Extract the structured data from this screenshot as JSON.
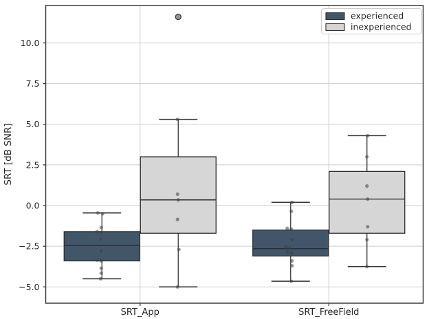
{
  "figure": {
    "ylabel": "SRT [dB SNR]"
  },
  "chart_data": {
    "type": "boxplot",
    "title": "",
    "xlabel": "",
    "ylabel": "SRT [dB SNR]",
    "categories": [
      "SRT_App",
      "SRT_FreeField"
    ],
    "grid": true,
    "legend_position": "upper right",
    "legend_entries": [
      "experienced",
      "inexperienced"
    ],
    "ylim": [
      -6.0,
      12.3
    ],
    "yticks": [
      10.0,
      7.5,
      5.0,
      2.5,
      0.0,
      -2.5,
      -5.0
    ],
    "ytick_labels": [
      "10.0",
      "7.5",
      "5.0",
      "2.5",
      "0.0",
      "−2.5",
      "−5.0"
    ],
    "colors": {
      "experienced": "#42566a",
      "inexperienced": "#d6d6d6",
      "box_edge": "#2d2d2d",
      "whisker": "#363636",
      "grid": "#cccccc",
      "spine": "#3a3a3a",
      "point": "#3f3f3f",
      "outlier_fill": "#8a8a8a",
      "outlier_edge": "#3a3a3a",
      "legend_border": "#cccccc"
    },
    "series": [
      {
        "name": "experienced",
        "boxes": [
          {
            "category": "SRT_App",
            "whisker_low": -4.5,
            "q1": -3.4,
            "median": -2.45,
            "q3": -1.6,
            "whisker_high": -0.45,
            "outliers": [],
            "points": [
              [
                -0.45,
                -6
              ],
              [
                -0.5,
                1
              ],
              [
                -1.35,
                -1
              ],
              [
                -1.6,
                -7
              ],
              [
                -1.65,
                -1
              ],
              [
                -2.05,
                -2
              ],
              [
                -2.8,
                -1
              ],
              [
                -3.35,
                -7
              ],
              [
                -3.4,
                -1
              ],
              [
                -3.85,
                -1
              ],
              [
                -4.15,
                -1
              ],
              [
                -4.5,
                -2
              ]
            ]
          },
          {
            "category": "SRT_FreeField",
            "whisker_low": -4.65,
            "q1": -3.1,
            "median": -2.65,
            "q3": -1.5,
            "whisker_high": 0.2,
            "outliers": [],
            "points": [
              [
                0.2,
                2
              ],
              [
                -0.35,
                1
              ],
              [
                -1.4,
                -5
              ],
              [
                -1.45,
                1
              ],
              [
                -2.1,
                2
              ],
              [
                -2.55,
                -7
              ],
              [
                -2.6,
                -2
              ],
              [
                -2.85,
                -5
              ],
              [
                -2.9,
                1
              ],
              [
                -3.4,
                2
              ],
              [
                -3.7,
                2
              ],
              [
                -4.65,
                1
              ]
            ]
          }
        ]
      },
      {
        "name": "inexperienced",
        "boxes": [
          {
            "category": "SRT_App",
            "whisker_low": -5.0,
            "q1": -1.7,
            "median": 0.35,
            "q3": 3.0,
            "whisker_high": 5.3,
            "outliers": [
              11.6
            ],
            "points": [
              [
                5.3,
                -1
              ],
              [
                0.7,
                -1
              ],
              [
                0.35,
                0
              ],
              [
                -0.85,
                -1
              ],
              [
                -2.7,
                1
              ],
              [
                -5.0,
                -1
              ]
            ]
          },
          {
            "category": "SRT_FreeField",
            "whisker_low": -3.75,
            "q1": -1.7,
            "median": 0.4,
            "q3": 2.1,
            "whisker_high": 4.3,
            "outliers": [],
            "points": [
              [
                4.3,
                1
              ],
              [
                3.0,
                0
              ],
              [
                1.2,
                0
              ],
              [
                0.4,
                1
              ],
              [
                -1.3,
                1
              ],
              [
                -2.1,
                0
              ],
              [
                -3.75,
                0
              ]
            ]
          }
        ]
      }
    ]
  }
}
